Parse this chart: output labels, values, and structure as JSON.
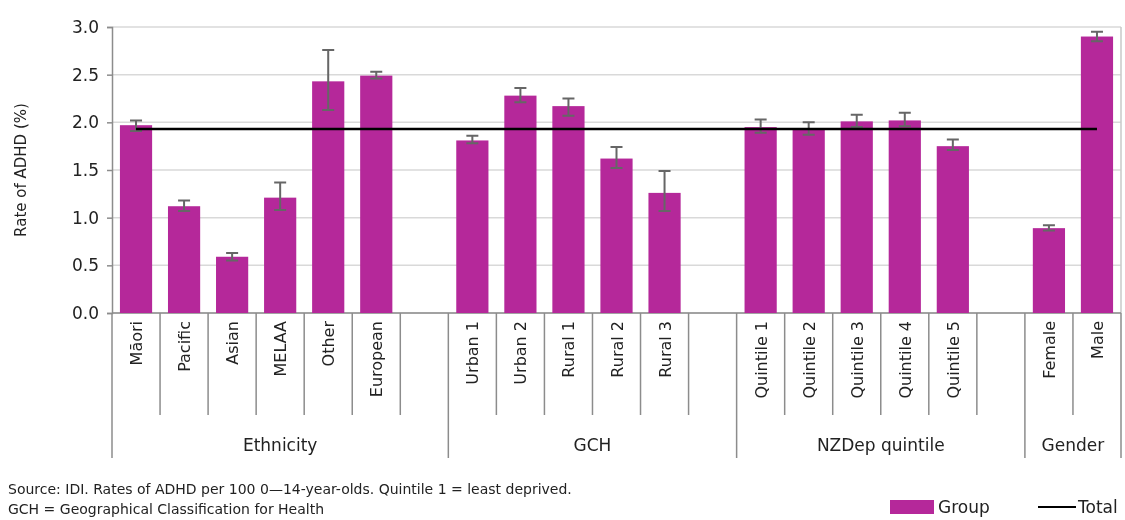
{
  "chart_data": {
    "type": "bar",
    "ylabel": "Rate of ADHD (%)",
    "categories": [
      "Māori",
      "Pacific",
      "Asian",
      "MELAA",
      "Other",
      "European",
      null,
      "Urban 1",
      "Urban 2",
      "Rural 1",
      "Rural 2",
      "Rural 3",
      null,
      "Quintile 1",
      "Quintile 2",
      "Quintile 3",
      "Quintile 4",
      "Quintile 5",
      null,
      "Female",
      "Male"
    ],
    "series": [
      {
        "name": "Group",
        "color": "#b5289a",
        "values": [
          1.97,
          1.12,
          0.59,
          1.21,
          2.43,
          2.49,
          null,
          1.81,
          2.28,
          2.17,
          1.62,
          1.26,
          null,
          1.95,
          1.93,
          2.01,
          2.02,
          1.75,
          null,
          0.89,
          2.9
        ],
        "errors": [
          [
            1.91,
            2.02
          ],
          [
            1.07,
            1.18
          ],
          [
            0.55,
            0.63
          ],
          [
            1.08,
            1.37
          ],
          [
            2.13,
            2.76
          ],
          [
            2.46,
            2.53
          ],
          null,
          [
            1.78,
            1.86
          ],
          [
            2.21,
            2.36
          ],
          [
            2.07,
            2.25
          ],
          [
            1.52,
            1.74
          ],
          [
            1.07,
            1.49
          ],
          null,
          [
            1.89,
            2.03
          ],
          [
            1.87,
            2.0
          ],
          [
            1.95,
            2.08
          ],
          [
            1.96,
            2.1
          ],
          [
            1.71,
            1.82
          ],
          null,
          [
            0.865,
            0.92
          ],
          [
            2.85,
            2.95
          ]
        ]
      }
    ],
    "ref_lines": [
      {
        "axis": "y",
        "value": 1.93,
        "label": "Total",
        "color": "#000000"
      }
    ],
    "ylim": [
      0,
      3
    ],
    "yticks": [
      {
        "value": 0,
        "label": "0.0"
      },
      {
        "value": 0.5,
        "label": "0.5"
      },
      {
        "value": 1,
        "label": "1.0"
      },
      {
        "value": 1.5,
        "label": "1.5"
      },
      {
        "value": 2,
        "label": "2.0"
      },
      {
        "value": 2.5,
        "label": "2.5"
      },
      {
        "value": 3,
        "label": "3.0"
      }
    ],
    "grid": "y",
    "legend": "bottom right",
    "annotations": [
      "Ethnicity",
      "GCH",
      "NZDep quintile",
      "Gender",
      "Source: IDI. Rates of ADHD per 100 0—14-year-olds. Quintile 1 = least deprived.",
      "GCH = Geographical Classification for Health"
    ]
  }
}
